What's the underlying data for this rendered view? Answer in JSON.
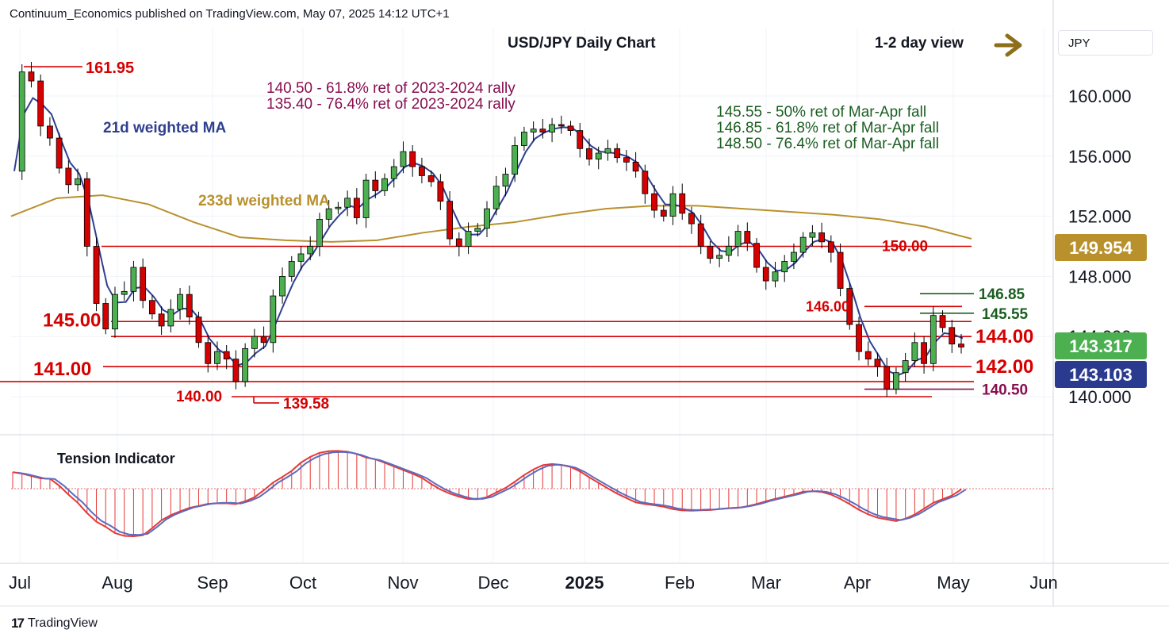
{
  "header": {
    "published": "Continuum_Economics published on TradingView.com, May 07, 2025 14:12 UTC+1"
  },
  "currency": "JPY",
  "footer": {
    "brand": "TradingView"
  },
  "chart_data": {
    "type": "candlestick",
    "title": "USD/JPY Daily Chart",
    "subtitle": "1-2 day view",
    "y_axis": {
      "ticks": [
        140,
        144,
        148,
        152,
        156,
        160
      ],
      "tick_labels": [
        "140.000",
        "144.000",
        "148.000",
        "152.000",
        "156.000",
        "160.000"
      ],
      "ylim": [
        138.2,
        164.4
      ]
    },
    "x_axis": {
      "labels": [
        "Jul",
        "Aug",
        "Sep",
        "Oct",
        "Nov",
        "Dec",
        "2025",
        "Feb",
        "Mar",
        "Apr",
        "May",
        "Jun"
      ]
    },
    "price_badges": [
      {
        "value": "149.954",
        "color": "#b8912c"
      },
      {
        "value": "143.317",
        "color": "#4caf50"
      },
      {
        "value": "143.103",
        "color": "#2a3b8f"
      }
    ],
    "levels": [
      {
        "label": "161.95",
        "value": 161.95
      },
      {
        "label": "150.00",
        "value": 150.0
      },
      {
        "label": "146.85",
        "value": 146.85
      },
      {
        "label": "146.00",
        "value": 146.0
      },
      {
        "label": "145.55",
        "value": 145.55
      },
      {
        "label": "145.00",
        "value": 145.0
      },
      {
        "label": "144.00",
        "value": 144.0
      },
      {
        "label": "142.00",
        "value": 142.0
      },
      {
        "label": "141.00",
        "value": 141.0
      },
      {
        "label": "140.50",
        "value": 140.5
      },
      {
        "label": "140.00",
        "value": 140.0
      },
      {
        "label": "139.58",
        "value": 139.58
      }
    ],
    "annotations": [
      {
        "text": "140.50 - 61.8% ret of 2023-2024 rally",
        "color": "#880e4f"
      },
      {
        "text": "135.40 - 76.4% ret of 2023-2024 rally",
        "color": "#880e4f"
      },
      {
        "text": "145.55 - 50% ret of Mar-Apr fall",
        "color": "#1b5e20"
      },
      {
        "text": "146.85 - 61.8% ret of Mar-Apr fall",
        "color": "#1b5e20"
      },
      {
        "text": "148.50 - 76.4% ret of Mar-Apr fall",
        "color": "#1b5e20"
      }
    ],
    "series": [
      {
        "name": "21d weighted MA",
        "color": "#2f3f8f"
      },
      {
        "name": "233d weighted MA",
        "color": "#b8912c"
      }
    ],
    "ohlc_close_path": [
      155.0,
      161.6,
      161.0,
      158.0,
      157.2,
      155.2,
      154.1,
      154.5,
      150.0,
      146.2,
      144.5,
      146.8,
      147.0,
      148.6,
      146.4,
      145.5,
      144.7,
      145.8,
      146.8,
      145.3,
      143.6,
      142.2,
      143.0,
      142.5,
      141.0,
      143.2,
      144.0,
      143.6,
      146.7,
      148.0,
      149.0,
      149.5,
      150.0,
      151.8,
      152.5,
      152.6,
      153.2,
      151.9,
      154.4,
      153.7,
      154.5,
      155.3,
      156.3,
      155.3,
      154.7,
      154.3,
      153.0,
      150.5,
      150.0,
      151.0,
      151.2,
      152.5,
      154.0,
      154.8,
      156.7,
      157.6,
      157.8,
      157.6,
      158.1,
      158.0,
      157.7,
      156.5,
      155.8,
      156.2,
      156.5,
      155.9,
      155.6,
      155.0,
      153.5,
      152.4,
      152.0,
      153.5,
      152.2,
      151.5,
      150.0,
      149.2,
      149.4,
      150.0,
      151.0,
      150.2,
      148.6,
      147.7,
      148.3,
      149.0,
      149.6,
      150.6,
      150.9,
      150.3,
      149.6,
      147.2,
      144.8,
      143.0,
      142.5,
      142.0,
      140.5,
      141.6,
      142.4,
      143.6,
      142.2,
      145.4,
      144.6,
      143.5,
      143.3
    ],
    "tension_indicator": {
      "name": "Tension Indicator"
    }
  }
}
